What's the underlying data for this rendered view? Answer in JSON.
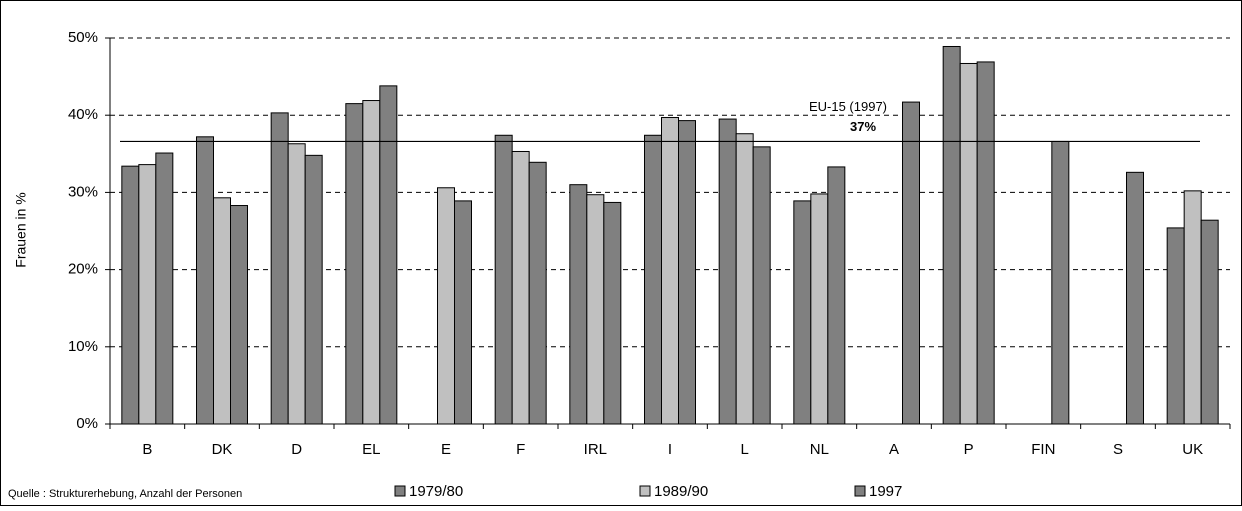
{
  "chart_data": {
    "type": "bar",
    "y_label": "Frauen in %",
    "source": "Quelle : Strukturerhebung, Anzahl der Personen",
    "categories": [
      "B",
      "DK",
      "D",
      "EL",
      "E",
      "F",
      "IRL",
      "I",
      "L",
      "NL",
      "A",
      "P",
      "FIN",
      "S",
      "UK"
    ],
    "series": [
      {
        "name": "1979/80",
        "color": "#808080",
        "values": [
          33.4,
          37.2,
          40.3,
          41.5,
          null,
          37.4,
          31.0,
          37.4,
          39.5,
          28.9,
          null,
          48.9,
          null,
          null,
          25.4
        ]
      },
      {
        "name": "1989/90",
        "color": "#c0c0c0",
        "values": [
          33.6,
          29.3,
          36.3,
          41.9,
          30.6,
          35.3,
          29.7,
          39.7,
          37.6,
          29.8,
          null,
          46.7,
          null,
          null,
          30.2
        ]
      },
      {
        "name": "1997",
        "color": "#808080",
        "values": [
          35.1,
          28.3,
          34.8,
          43.8,
          28.9,
          33.9,
          28.7,
          39.3,
          35.9,
          33.3,
          41.7,
          46.9,
          36.6,
          32.6,
          26.4
        ]
      }
    ],
    "reference_line": {
      "name": "EU-15 (1997)",
      "value": 36.6,
      "label": "37%"
    },
    "ylim": [
      0,
      50
    ],
    "yticks": [
      {
        "value": 0,
        "label": "0%"
      },
      {
        "value": 10,
        "label": "10%"
      },
      {
        "value": 20,
        "label": "20%"
      },
      {
        "value": 30,
        "label": "30%"
      },
      {
        "value": 40,
        "label": "40%"
      },
      {
        "value": 50,
        "label": "50%"
      }
    ],
    "grid": true,
    "legend": "bottom"
  }
}
